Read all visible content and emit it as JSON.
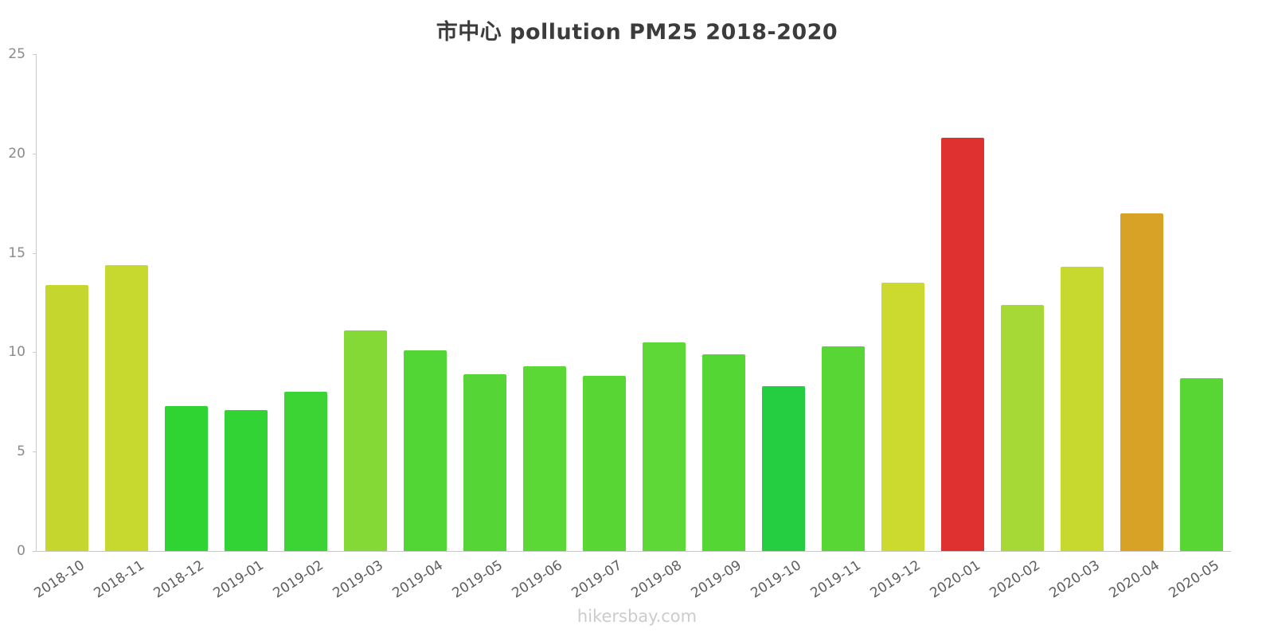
{
  "title": "市中心 pollution PM25 2018-2020",
  "watermark": "hikersbay.com",
  "chart_data": {
    "type": "bar",
    "title": "市中心 pollution PM25 2018-2020",
    "categories": [
      "2018-10",
      "2018-11",
      "2018-12",
      "2019-01",
      "2019-02",
      "2019-03",
      "2019-04",
      "2019-05",
      "2019-06",
      "2019-07",
      "2019-08",
      "2019-09",
      "2019-10",
      "2019-11",
      "2019-12",
      "2020-01",
      "2020-02",
      "2020-03",
      "2020-04",
      "2020-05"
    ],
    "values": [
      13.4,
      14.4,
      7.3,
      7.1,
      8.0,
      11.1,
      10.1,
      8.9,
      9.3,
      8.8,
      10.5,
      9.9,
      8.3,
      10.3,
      13.5,
      20.8,
      12.4,
      14.3,
      17.0,
      8.7
    ],
    "colors": [
      "#c5d62e",
      "#c7d82e",
      "#2fd433",
      "#31d434",
      "#3cd434",
      "#85d936",
      "#52d636",
      "#55d636",
      "#5cd836",
      "#57d634",
      "#5ed836",
      "#54d634",
      "#25ce40",
      "#58d636",
      "#ccd92e",
      "#e03131",
      "#a6d936",
      "#c7d92e",
      "#d8a227",
      "#57d634"
    ],
    "xlabel": "",
    "ylabel": "",
    "ylim": [
      0,
      25
    ],
    "yticks": [
      0,
      5,
      10,
      15,
      20,
      25
    ],
    "grid": false,
    "legend": null
  }
}
